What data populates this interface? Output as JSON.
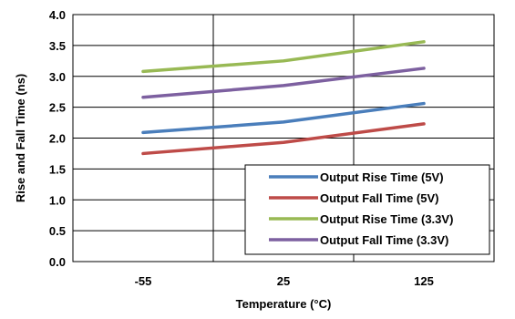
{
  "chart_data": {
    "type": "line",
    "title": "",
    "xlabel": "Temperature (°C)",
    "ylabel": "Rise and Fall Time (ns)",
    "categories": [
      "-55",
      "25",
      "125"
    ],
    "x": [
      -55,
      25,
      125
    ],
    "ylim": [
      0,
      4.0
    ],
    "yticks": [
      "0.0",
      "0.5",
      "1.0",
      "1.5",
      "2.0",
      "2.5",
      "3.0",
      "3.5",
      "4.0"
    ],
    "grid": true,
    "legend_position": "bottom-right",
    "series": [
      {
        "name": "Output Rise Time (5V)",
        "color": "#4a7ebb",
        "values": [
          2.09,
          2.26,
          2.56
        ]
      },
      {
        "name": "Output Fall Time (5V)",
        "color": "#be4b48",
        "values": [
          1.75,
          1.93,
          2.23
        ]
      },
      {
        "name": "Output Rise Time (3.3V)",
        "color": "#98b954",
        "values": [
          3.08,
          3.25,
          3.56
        ]
      },
      {
        "name": "Output Fall Time (3.3V)",
        "color": "#7d60a0",
        "values": [
          2.66,
          2.85,
          3.13
        ]
      }
    ]
  }
}
